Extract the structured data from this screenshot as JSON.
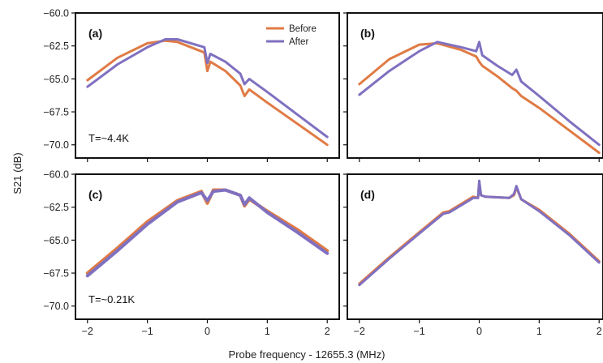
{
  "figure": {
    "xlabel": "Probe frequency - 12655.3 (MHz)",
    "ylabel": "S21 (dB)"
  },
  "legend": [
    {
      "name": "Before",
      "color": "#e07b45"
    },
    {
      "name": "After",
      "color": "#8070c0"
    }
  ],
  "chart_data": [
    {
      "type": "line",
      "panel": "(a)",
      "annotation": "T=~4.4K",
      "xlim": [
        -2.2,
        2.2
      ],
      "ylim": [
        -71,
        -60
      ],
      "xticks": [
        "−2",
        "−1",
        "0",
        "1",
        "2"
      ],
      "yticks": [
        "−60.0",
        "−62.5",
        "−65.0",
        "−67.5",
        "−70.0"
      ],
      "series": [
        {
          "name": "Before",
          "x": [
            -2,
            -1.5,
            -1,
            -0.7,
            -0.5,
            -0.05,
            0,
            0.05,
            0.3,
            0.55,
            0.62,
            0.7,
            1,
            1.5,
            2
          ],
          "y": [
            -65.1,
            -63.4,
            -62.3,
            -62.1,
            -62.2,
            -63.0,
            -64.4,
            -63.7,
            -64.4,
            -65.5,
            -66.3,
            -65.8,
            -66.8,
            -68.4,
            -70.0
          ]
        },
        {
          "name": "After",
          "x": [
            -2,
            -1.5,
            -1,
            -0.7,
            -0.5,
            -0.05,
            0,
            0.05,
            0.3,
            0.55,
            0.62,
            0.7,
            1,
            1.5,
            2
          ],
          "y": [
            -65.6,
            -63.9,
            -62.6,
            -62.0,
            -62.0,
            -62.6,
            -63.8,
            -63.1,
            -63.7,
            -64.6,
            -65.4,
            -65.0,
            -66.0,
            -67.7,
            -69.4
          ]
        }
      ]
    },
    {
      "type": "line",
      "panel": "(b)",
      "annotation": "",
      "xlim": [
        -2.2,
        2.2
      ],
      "ylim": [
        -71,
        -60
      ],
      "xticks": [
        "−2",
        "−1",
        "0",
        "1",
        "2"
      ],
      "yticks": [],
      "series": [
        {
          "name": "Before",
          "x": [
            -2,
            -1.5,
            -1,
            -0.7,
            -0.3,
            -0.05,
            0,
            0.05,
            0.3,
            0.55,
            0.62,
            0.7,
            1,
            1.5,
            2
          ],
          "y": [
            -65.4,
            -63.5,
            -62.4,
            -62.3,
            -62.8,
            -63.3,
            -63.7,
            -64.0,
            -64.8,
            -65.7,
            -65.9,
            -66.3,
            -67.2,
            -68.9,
            -70.6
          ]
        },
        {
          "name": "After",
          "x": [
            -2,
            -1.5,
            -1,
            -0.7,
            -0.3,
            -0.05,
            0,
            0.05,
            0.3,
            0.55,
            0.62,
            0.7,
            1,
            1.5,
            2
          ],
          "y": [
            -66.2,
            -64.4,
            -62.9,
            -62.2,
            -62.6,
            -62.9,
            -62.2,
            -63.2,
            -64.0,
            -64.7,
            -64.3,
            -65.2,
            -66.3,
            -68.2,
            -70.0
          ]
        }
      ]
    },
    {
      "type": "line",
      "panel": "(c)",
      "annotation": "T=~0.21K",
      "xlim": [
        -2.2,
        2.2
      ],
      "ylim": [
        -71,
        -60
      ],
      "xticks": [
        "−2",
        "−1",
        "0",
        "1",
        "2"
      ],
      "yticks": [
        "−60.0",
        "−62.5",
        "−65.0",
        "−67.5",
        "−70.0"
      ],
      "series": [
        {
          "name": "Before",
          "x": [
            -2,
            -1.5,
            -1,
            -0.5,
            -0.1,
            0,
            0.1,
            0.3,
            0.55,
            0.62,
            0.7,
            1,
            1.5,
            2
          ],
          "y": [
            -67.5,
            -65.6,
            -63.6,
            -62.0,
            -61.3,
            -62.2,
            -61.2,
            -61.2,
            -61.6,
            -62.4,
            -61.9,
            -62.8,
            -64.2,
            -65.8
          ]
        },
        {
          "name": "After",
          "x": [
            -2,
            -1.5,
            -1,
            -0.5,
            -0.1,
            0,
            0.1,
            0.3,
            0.55,
            0.62,
            0.7,
            1,
            1.5,
            2
          ],
          "y": [
            -67.7,
            -65.8,
            -63.8,
            -62.1,
            -61.4,
            -62.0,
            -61.3,
            -61.2,
            -61.6,
            -62.3,
            -61.8,
            -62.9,
            -64.4,
            -66.0
          ]
        }
      ]
    },
    {
      "type": "line",
      "panel": "(d)",
      "annotation": "",
      "xlim": [
        -2.2,
        2.2
      ],
      "ylim": [
        -71,
        -60
      ],
      "xticks": [
        "−2",
        "−1",
        "0",
        "1",
        "2"
      ],
      "yticks": [],
      "series": [
        {
          "name": "Before",
          "x": [
            -2,
            -1.5,
            -1,
            -0.6,
            -0.5,
            -0.1,
            -0.02,
            0,
            0.03,
            0.1,
            0.5,
            0.58,
            0.62,
            0.7,
            1,
            1.5,
            2
          ],
          "y": [
            -68.3,
            -66.3,
            -64.4,
            -62.9,
            -62.8,
            -61.7,
            -61.8,
            -60.7,
            -61.6,
            -61.7,
            -61.8,
            -61.6,
            -61.0,
            -61.9,
            -62.7,
            -64.5,
            -66.6
          ]
        },
        {
          "name": "After",
          "x": [
            -2,
            -1.5,
            -1,
            -0.6,
            -0.5,
            -0.1,
            -0.02,
            0,
            0.03,
            0.1,
            0.5,
            0.58,
            0.62,
            0.7,
            1,
            1.5,
            2
          ],
          "y": [
            -68.4,
            -66.4,
            -64.5,
            -63.0,
            -62.9,
            -61.8,
            -61.8,
            -60.5,
            -61.6,
            -61.7,
            -61.8,
            -61.5,
            -60.9,
            -61.9,
            -62.8,
            -64.6,
            -66.7
          ]
        }
      ]
    }
  ]
}
